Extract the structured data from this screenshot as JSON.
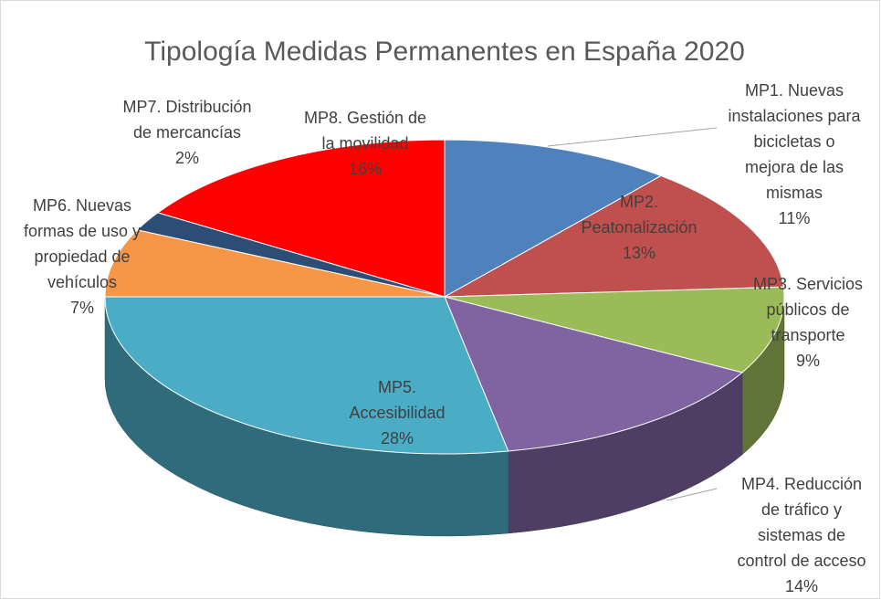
{
  "chart_data": {
    "type": "pie3d",
    "title": "Tipología Medidas Permanentes en España 2020",
    "categories": [
      "MP1. Nuevas instalaciones para bicicletas o mejora de las mismas",
      "MP2. Peatonalización",
      "MP3. Servicios públicos de transporte",
      "MP4. Reducción de tráfico y sistemas de control de acceso",
      "MP5. Accesibilidad",
      "MP6. Nuevas formas de uso y propiedad de vehículos",
      "MP7. Distribución de mercancías",
      "MP8. Gestión de la movilidad"
    ],
    "values": [
      11,
      13,
      9,
      14,
      28,
      7,
      2,
      16
    ],
    "value_labels": [
      "11%",
      "13%",
      "9%",
      "14%",
      "28%",
      "7%",
      "2%",
      "16%"
    ],
    "colors": [
      "#4f81bd",
      "#c0504d",
      "#9bbb59",
      "#8064a2",
      "#4bacc6",
      "#f79646",
      "#2c4d75",
      "#ff0000"
    ]
  }
}
